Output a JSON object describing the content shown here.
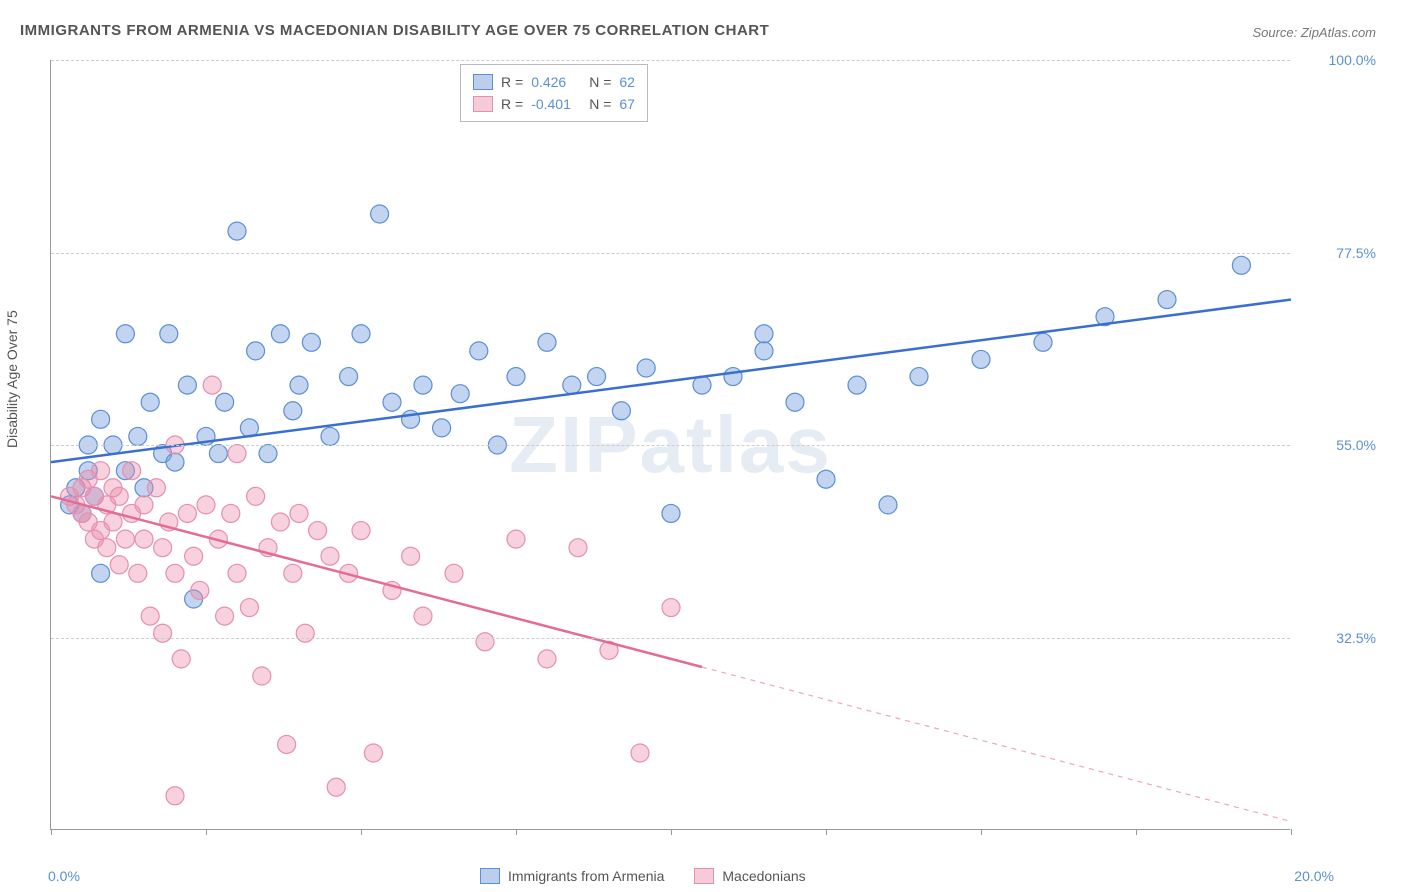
{
  "title": "IMMIGRANTS FROM ARMENIA VS MACEDONIAN DISABILITY AGE OVER 75 CORRELATION CHART",
  "source": "Source: ZipAtlas.com",
  "watermark": "ZIPatlas",
  "y_axis_label": "Disability Age Over 75",
  "chart": {
    "type": "scatter",
    "background_color": "#ffffff",
    "grid_color": "#cccccc",
    "text_color": "#555555",
    "tick_label_color": "#5b8fd6",
    "xlim": [
      0,
      20
    ],
    "ylim": [
      10,
      100
    ],
    "x_tick_positions": [
      0,
      2.5,
      5,
      7.5,
      10,
      12.5,
      15,
      17.5,
      20
    ],
    "x_min_label": "0.0%",
    "x_max_label": "20.0%",
    "y_ticks": [
      {
        "value": 32.5,
        "label": "32.5%"
      },
      {
        "value": 55.0,
        "label": "55.0%"
      },
      {
        "value": 77.5,
        "label": "77.5%"
      },
      {
        "value": 100.0,
        "label": "100.0%"
      }
    ],
    "marker_radius": 9,
    "marker_stroke_width": 1.2,
    "line_width": 2.5,
    "series": [
      {
        "name": "Immigrants from Armenia",
        "r_label": "R =",
        "r_value": "0.426",
        "n_label": "N =",
        "n_value": "62",
        "fill_color": "rgba(120,160,220,0.45)",
        "stroke_color": "#5b8fd6",
        "line_color": "#3a6fd0",
        "trend_start_y": 53.0,
        "trend_end_y": 72.0,
        "trend_dash_after_x": null,
        "points": [
          [
            0.3,
            48
          ],
          [
            0.4,
            50
          ],
          [
            0.5,
            47
          ],
          [
            0.6,
            52
          ],
          [
            0.6,
            55
          ],
          [
            0.7,
            49
          ],
          [
            0.8,
            58
          ],
          [
            0.8,
            40
          ],
          [
            1.0,
            55
          ],
          [
            1.2,
            68
          ],
          [
            1.2,
            52
          ],
          [
            1.4,
            56
          ],
          [
            1.5,
            50
          ],
          [
            1.6,
            60
          ],
          [
            1.8,
            54
          ],
          [
            1.9,
            68
          ],
          [
            2.0,
            53
          ],
          [
            2.2,
            62
          ],
          [
            2.3,
            37
          ],
          [
            2.5,
            56
          ],
          [
            2.7,
            54
          ],
          [
            2.8,
            60
          ],
          [
            3.0,
            80
          ],
          [
            3.2,
            57
          ],
          [
            3.3,
            66
          ],
          [
            3.5,
            54
          ],
          [
            3.7,
            68
          ],
          [
            3.9,
            59
          ],
          [
            4.0,
            62
          ],
          [
            4.2,
            67
          ],
          [
            4.5,
            56
          ],
          [
            4.8,
            63
          ],
          [
            5.0,
            68
          ],
          [
            5.3,
            82
          ],
          [
            5.5,
            60
          ],
          [
            5.8,
            58
          ],
          [
            6.0,
            62
          ],
          [
            6.3,
            57
          ],
          [
            6.6,
            61
          ],
          [
            6.9,
            66
          ],
          [
            7.2,
            55
          ],
          [
            7.5,
            63
          ],
          [
            8.0,
            67
          ],
          [
            8.4,
            62
          ],
          [
            8.8,
            63
          ],
          [
            9.2,
            59
          ],
          [
            9.6,
            64
          ],
          [
            10.0,
            47
          ],
          [
            10.5,
            62
          ],
          [
            11.0,
            63
          ],
          [
            11.5,
            66
          ],
          [
            12.0,
            60
          ],
          [
            12.5,
            51
          ],
          [
            13.0,
            62
          ],
          [
            13.5,
            48
          ],
          [
            14.0,
            63
          ],
          [
            11.5,
            68
          ],
          [
            15.0,
            65
          ],
          [
            16.0,
            67
          ],
          [
            17.0,
            70
          ],
          [
            18.0,
            72
          ],
          [
            19.2,
            76
          ]
        ]
      },
      {
        "name": "Macedonians",
        "r_label": "R =",
        "r_value": "-0.401",
        "n_label": "N =",
        "n_value": "67",
        "fill_color": "rgba(235,140,170,0.4)",
        "stroke_color": "#e78fb0",
        "line_color": "#e56b97",
        "trend_start_y": 49.0,
        "trend_end_y": 11.0,
        "trend_dash_after_x": 10.5,
        "points": [
          [
            0.3,
            49
          ],
          [
            0.4,
            48
          ],
          [
            0.5,
            50
          ],
          [
            0.5,
            47
          ],
          [
            0.6,
            46
          ],
          [
            0.6,
            51
          ],
          [
            0.7,
            44
          ],
          [
            0.7,
            49
          ],
          [
            0.8,
            52
          ],
          [
            0.8,
            45
          ],
          [
            0.9,
            48
          ],
          [
            0.9,
            43
          ],
          [
            1.0,
            50
          ],
          [
            1.0,
            46
          ],
          [
            1.1,
            41
          ],
          [
            1.1,
            49
          ],
          [
            1.2,
            44
          ],
          [
            1.3,
            52
          ],
          [
            1.3,
            47
          ],
          [
            1.4,
            40
          ],
          [
            1.5,
            48
          ],
          [
            1.5,
            44
          ],
          [
            1.6,
            35
          ],
          [
            1.7,
            50
          ],
          [
            1.8,
            43
          ],
          [
            1.8,
            33
          ],
          [
            1.9,
            46
          ],
          [
            2.0,
            40
          ],
          [
            2.0,
            55
          ],
          [
            2.1,
            30
          ],
          [
            2.2,
            47
          ],
          [
            2.3,
            42
          ],
          [
            2.4,
            38
          ],
          [
            2.5,
            48
          ],
          [
            2.6,
            62
          ],
          [
            2.7,
            44
          ],
          [
            2.8,
            35
          ],
          [
            2.9,
            47
          ],
          [
            3.0,
            54
          ],
          [
            3.0,
            40
          ],
          [
            3.2,
            36
          ],
          [
            3.3,
            49
          ],
          [
            3.4,
            28
          ],
          [
            3.5,
            43
          ],
          [
            3.7,
            46
          ],
          [
            3.8,
            20
          ],
          [
            3.9,
            40
          ],
          [
            4.0,
            47
          ],
          [
            4.1,
            33
          ],
          [
            4.3,
            45
          ],
          [
            4.5,
            42
          ],
          [
            4.6,
            15
          ],
          [
            4.8,
            40
          ],
          [
            5.0,
            45
          ],
          [
            5.2,
            19
          ],
          [
            5.5,
            38
          ],
          [
            5.8,
            42
          ],
          [
            6.0,
            35
          ],
          [
            6.5,
            40
          ],
          [
            7.0,
            32
          ],
          [
            7.5,
            44
          ],
          [
            8.0,
            30
          ],
          [
            8.5,
            43
          ],
          [
            9.0,
            31
          ],
          [
            9.5,
            19
          ],
          [
            10.0,
            36
          ],
          [
            2.0,
            14
          ]
        ]
      }
    ]
  },
  "bottom_legend": [
    {
      "swatch": "blue",
      "label": "Immigrants from Armenia"
    },
    {
      "swatch": "pink",
      "label": "Macedonians"
    }
  ]
}
